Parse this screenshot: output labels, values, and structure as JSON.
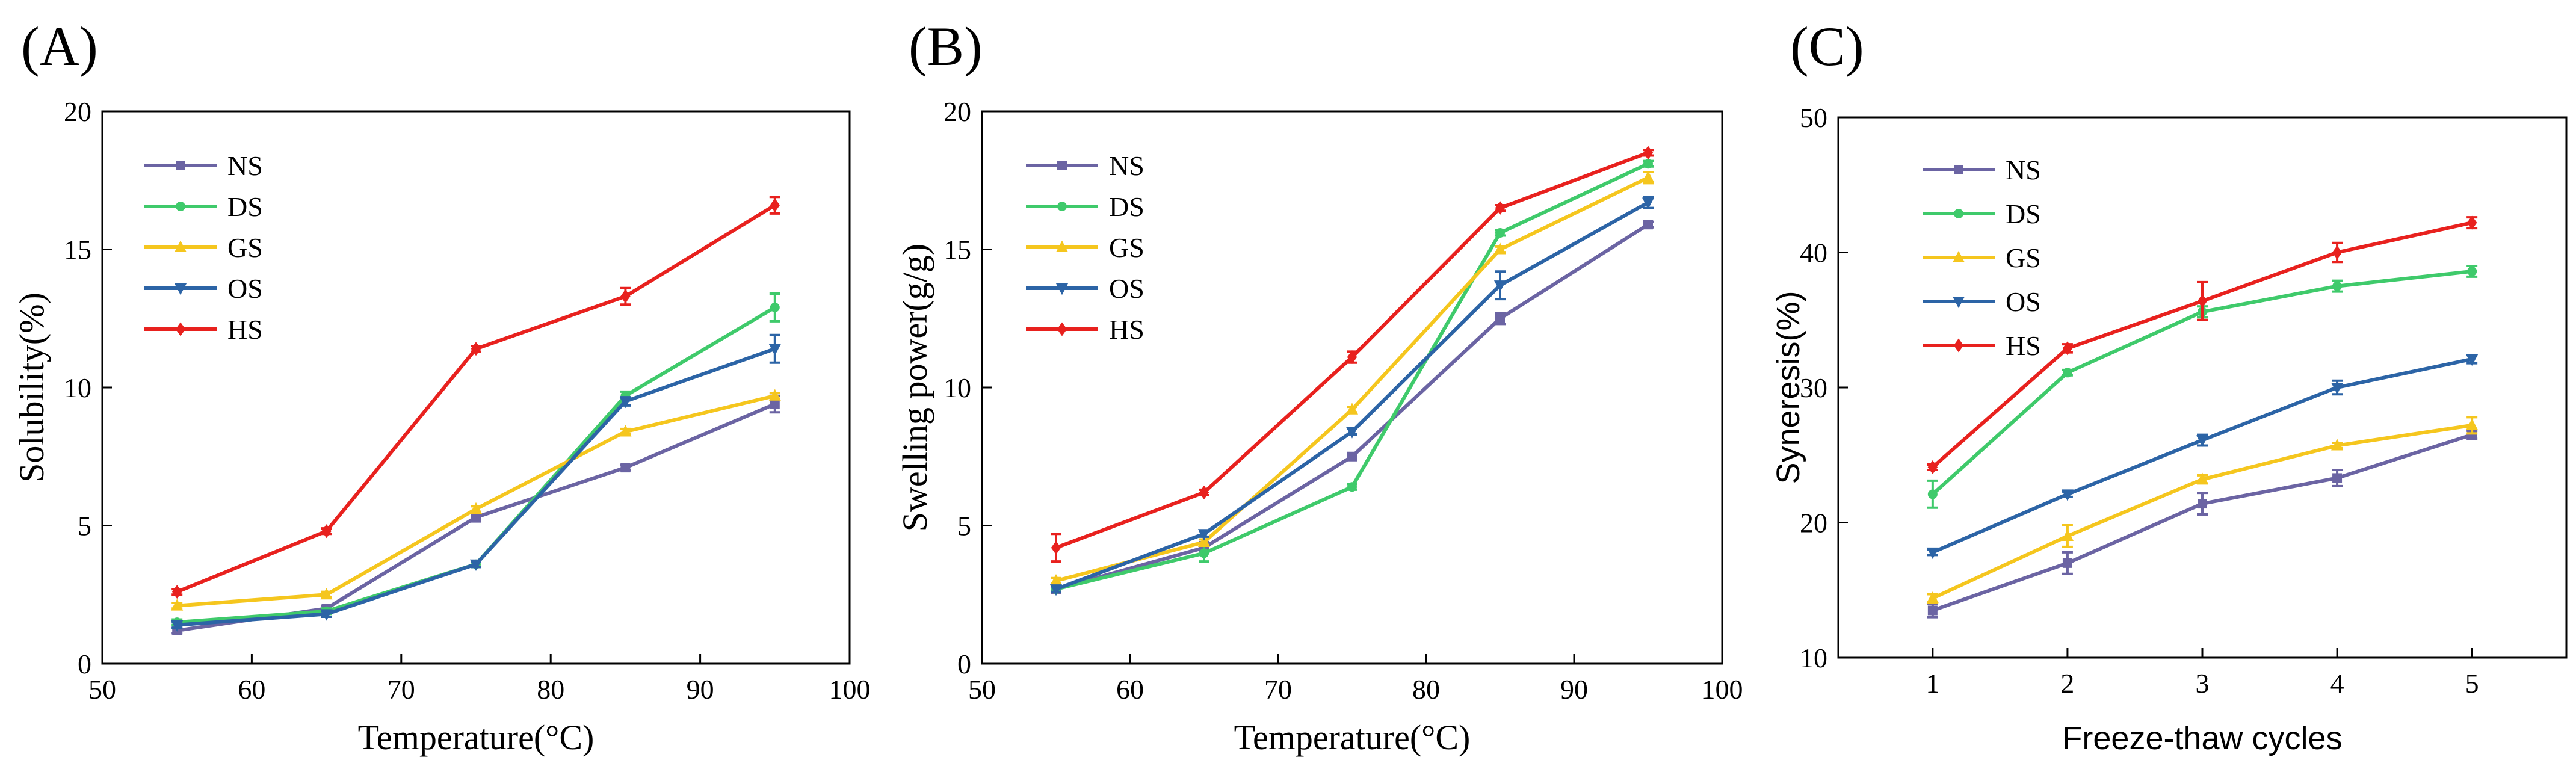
{
  "chart_data": [
    {
      "type": "line",
      "panel_label": "(A)",
      "xlabel": "Temperature(°C)",
      "ylabel": "Solubility(%)",
      "xlim": [
        50,
        100
      ],
      "ylim": [
        0,
        20
      ],
      "x_ticks": [
        50,
        60,
        70,
        80,
        90,
        100
      ],
      "y_ticks": [
        0,
        5,
        10,
        15,
        20
      ],
      "x": [
        55,
        65,
        75,
        85,
        95
      ],
      "legend_position": "top-left",
      "series": [
        {
          "name": "NS",
          "color": "#6b64a3",
          "marker": "square",
          "values": [
            1.2,
            2.0,
            5.3,
            7.1,
            9.4
          ],
          "errors": [
            0.1,
            0.1,
            0.15,
            0.1,
            0.3
          ]
        },
        {
          "name": "DS",
          "color": "#3fca6b",
          "marker": "circle",
          "values": [
            1.5,
            1.9,
            3.6,
            9.7,
            12.9
          ],
          "errors": [
            0.1,
            0.1,
            0.1,
            0.15,
            0.5
          ]
        },
        {
          "name": "GS",
          "color": "#f5c61e",
          "marker": "triangle-up",
          "values": [
            2.1,
            2.5,
            5.6,
            8.4,
            9.7
          ],
          "errors": [
            0.1,
            0.1,
            0.1,
            0.1,
            0.1
          ]
        },
        {
          "name": "OS",
          "color": "#2c64a6",
          "marker": "triangle-down",
          "values": [
            1.4,
            1.8,
            3.6,
            9.5,
            11.4
          ],
          "errors": [
            0.1,
            0.1,
            0.1,
            0.15,
            0.5
          ]
        },
        {
          "name": "HS",
          "color": "#e8211e",
          "marker": "diamond",
          "values": [
            2.6,
            4.8,
            11.4,
            13.3,
            16.6
          ],
          "errors": [
            0.1,
            0.1,
            0.1,
            0.3,
            0.3
          ]
        }
      ]
    },
    {
      "type": "line",
      "panel_label": "(B)",
      "xlabel": "Temperature(°C)",
      "ylabel": "Swelling power(g/g)",
      "xlim": [
        50,
        100
      ],
      "ylim": [
        0,
        20
      ],
      "x_ticks": [
        50,
        60,
        70,
        80,
        90,
        100
      ],
      "y_ticks": [
        0,
        5,
        10,
        15,
        20
      ],
      "x": [
        55,
        65,
        75,
        85,
        95
      ],
      "legend_position": "top-left",
      "series": [
        {
          "name": "NS",
          "color": "#6b64a3",
          "marker": "square",
          "values": [
            2.7,
            4.2,
            7.5,
            12.5,
            15.9
          ],
          "errors": [
            0.1,
            0.2,
            0.1,
            0.2,
            0.1
          ]
        },
        {
          "name": "DS",
          "color": "#3fca6b",
          "marker": "circle",
          "values": [
            2.7,
            4.0,
            6.4,
            15.6,
            18.1
          ],
          "errors": [
            0.1,
            0.3,
            0.1,
            0.1,
            0.1
          ]
        },
        {
          "name": "GS",
          "color": "#f5c61e",
          "marker": "triangle-up",
          "values": [
            3.0,
            4.4,
            9.2,
            15.0,
            17.6
          ],
          "errors": [
            0.1,
            0.1,
            0.1,
            0.1,
            0.2
          ]
        },
        {
          "name": "OS",
          "color": "#2c64a6",
          "marker": "triangle-down",
          "values": [
            2.7,
            4.7,
            8.4,
            13.7,
            16.7
          ],
          "errors": [
            0.1,
            0.1,
            0.1,
            0.5,
            0.2
          ]
        },
        {
          "name": "HS",
          "color": "#e8211e",
          "marker": "diamond",
          "values": [
            4.2,
            6.2,
            11.1,
            16.5,
            18.5
          ],
          "errors": [
            0.5,
            0.1,
            0.2,
            0.1,
            0.1
          ]
        }
      ]
    },
    {
      "type": "line",
      "panel_label": "(C)",
      "xlabel": "Freeze-thaw cycles",
      "ylabel": "Syneresis(%)",
      "xlim": [
        0.3,
        5.7
      ],
      "ylim": [
        10,
        50
      ],
      "x_ticks": [
        1,
        2,
        3,
        4,
        5
      ],
      "y_ticks": [
        10,
        20,
        30,
        40,
        50
      ],
      "x": [
        1,
        2,
        3,
        4,
        5
      ],
      "legend_position": "top-left",
      "series": [
        {
          "name": "NS",
          "color": "#6b64a3",
          "marker": "square",
          "values": [
            13.5,
            17.0,
            21.4,
            23.3,
            26.5
          ],
          "errors": [
            0.5,
            0.8,
            0.8,
            0.6,
            0.3
          ]
        },
        {
          "name": "DS",
          "color": "#3fca6b",
          "marker": "circle",
          "values": [
            22.1,
            31.1,
            35.6,
            37.5,
            38.6
          ],
          "errors": [
            1.0,
            0.2,
            0.4,
            0.4,
            0.4
          ]
        },
        {
          "name": "GS",
          "color": "#f5c61e",
          "marker": "triangle-up",
          "values": [
            14.4,
            19.0,
            23.2,
            25.7,
            27.2
          ],
          "errors": [
            0.3,
            0.8,
            0.3,
            0.2,
            0.6
          ]
        },
        {
          "name": "OS",
          "color": "#2c64a6",
          "marker": "triangle-down",
          "values": [
            17.8,
            22.1,
            26.1,
            30.0,
            32.1
          ],
          "errors": [
            0.2,
            0.2,
            0.4,
            0.5,
            0.3
          ]
        },
        {
          "name": "HS",
          "color": "#e8211e",
          "marker": "diamond",
          "values": [
            24.1,
            32.9,
            36.4,
            40.0,
            42.2
          ],
          "errors": [
            0.2,
            0.3,
            1.4,
            0.7,
            0.4
          ]
        }
      ]
    }
  ]
}
